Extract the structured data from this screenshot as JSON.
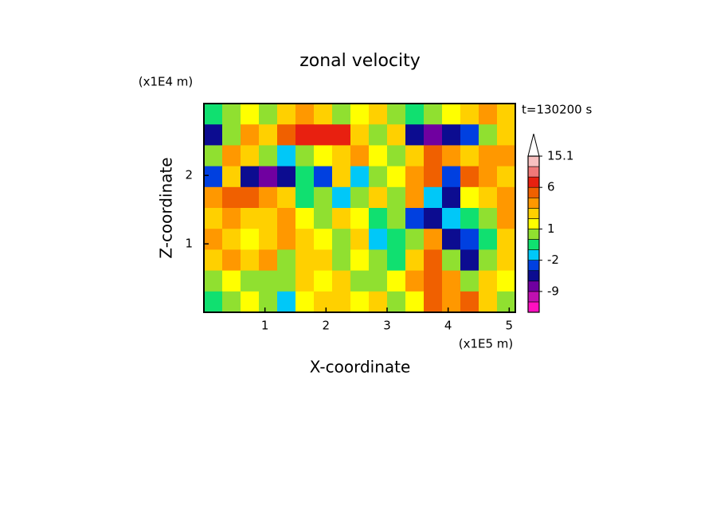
{
  "chart_data": {
    "type": "contour",
    "title": "zonal velocity",
    "x_label": "X-coordinate",
    "y_label": "Z-coordinate",
    "x_unit": "(x1E5 m)",
    "y_unit": "(x1E4 m)",
    "time_label": "t=130200 s",
    "xlim": [
      0,
      5.1
    ],
    "ylim": [
      0,
      3.05
    ],
    "xticks": [
      1,
      2,
      3,
      4,
      5
    ],
    "yticks": [
      1,
      2
    ],
    "values": [
      [
        -1,
        0,
        1,
        0,
        2,
        3,
        2,
        0,
        1,
        2,
        0,
        -1,
        0,
        1,
        2,
        3,
        2
      ],
      [
        -4,
        0,
        3,
        2,
        5,
        7,
        8,
        6,
        2,
        0,
        2,
        -5,
        -7,
        -6,
        -3,
        0,
        2
      ],
      [
        0,
        3,
        2,
        0,
        -2,
        0,
        1,
        2,
        3,
        1,
        0,
        2,
        4,
        3,
        2,
        3,
        3
      ],
      [
        -3,
        2,
        -6,
        -7,
        -5,
        -1,
        -3,
        2,
        -2,
        0,
        1,
        3,
        5,
        -3,
        4,
        3,
        2
      ],
      [
        3,
        4,
        5,
        3,
        2,
        -1,
        0,
        -2,
        0,
        2,
        0,
        3,
        -2,
        -4,
        1,
        2,
        3
      ],
      [
        2,
        3,
        2,
        2,
        3,
        1,
        0,
        2,
        1,
        -1,
        0,
        -3,
        -6,
        -2,
        -1,
        0,
        3
      ],
      [
        3,
        2,
        1,
        2,
        3,
        2,
        1,
        0,
        2,
        -2,
        -1,
        0,
        3,
        -5,
        -3,
        -1,
        2
      ],
      [
        2,
        3,
        2,
        3,
        0,
        2,
        2,
        0,
        1,
        0,
        -1,
        2,
        4,
        0,
        -4,
        0,
        2
      ],
      [
        0,
        1,
        0,
        0,
        0,
        2,
        1,
        2,
        0,
        0,
        1,
        3,
        5,
        3,
        0,
        2,
        1
      ],
      [
        -1,
        0,
        1,
        0,
        -2,
        1,
        2,
        2,
        1,
        2,
        0,
        1,
        4,
        3,
        5,
        2,
        0
      ]
    ],
    "colorbar": {
      "bounds": [
        -15,
        -12,
        -9,
        -6,
        -3,
        -2,
        -1,
        0,
        1,
        2,
        3,
        4,
        6,
        9,
        12,
        15.1
      ],
      "colors": [
        "#ff10c0",
        "#c010b0",
        "#7000a0",
        "#0c0c90",
        "#0040e0",
        "#00c8f8",
        "#10e070",
        "#90e030",
        "#ffff00",
        "#ffd000",
        "#ff9800",
        "#f06000",
        "#e82010",
        "#f07878",
        "#f8c0c0"
      ],
      "ticks": [
        -9,
        -2,
        1,
        6,
        15.1
      ]
    }
  }
}
